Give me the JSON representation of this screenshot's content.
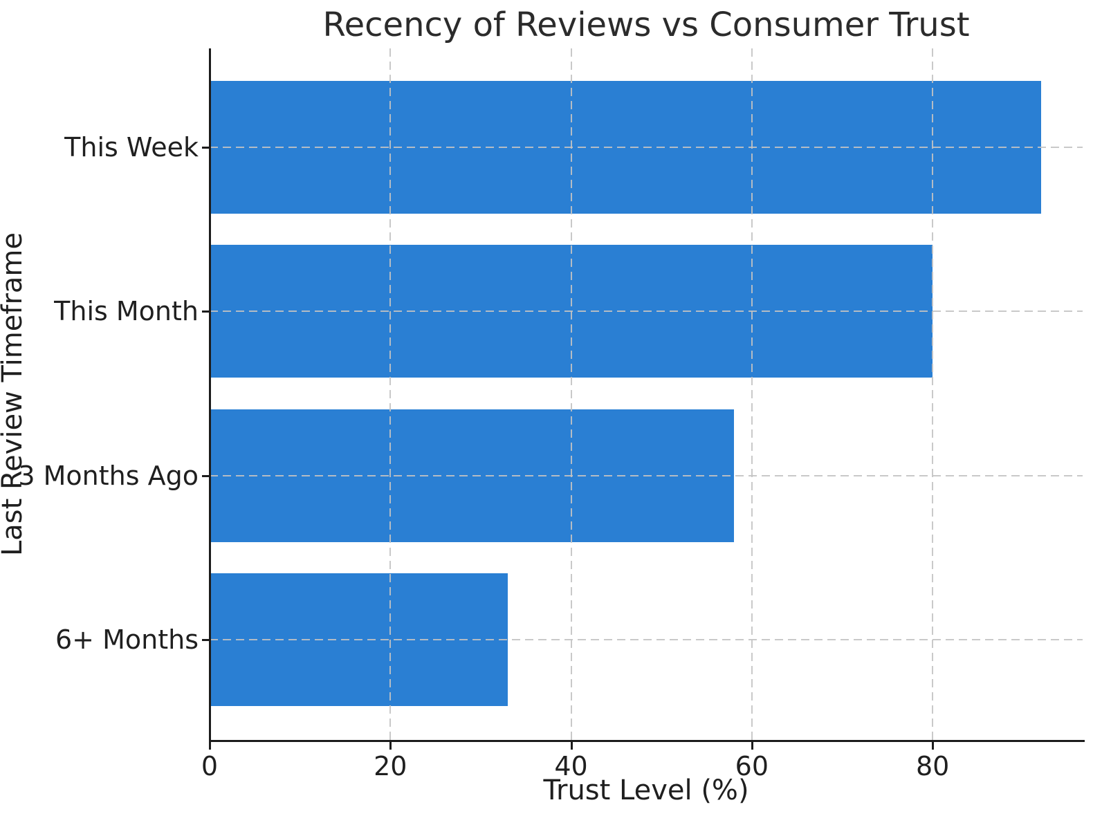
{
  "chart_data": {
    "type": "bar",
    "orientation": "horizontal",
    "title": "Recency of Reviews vs Consumer Trust",
    "xlabel": "Trust Level (%)",
    "ylabel": "Last Review Timeframe",
    "categories": [
      "This Week",
      "This Month",
      "3 Months Ago",
      "6+ Months"
    ],
    "values": [
      92,
      80,
      58,
      33
    ],
    "xlim": [
      0,
      96.6
    ],
    "xticks": [
      0,
      20,
      40,
      60,
      80
    ],
    "grid": true,
    "grid_style": "dashed",
    "legend": "none",
    "bar_color": "#2a7fd3",
    "grid_color": "#c3c3c3",
    "spine_color": "#1c1c1c",
    "text_color": "#1f1f1f",
    "background_color": "#ffffff"
  }
}
